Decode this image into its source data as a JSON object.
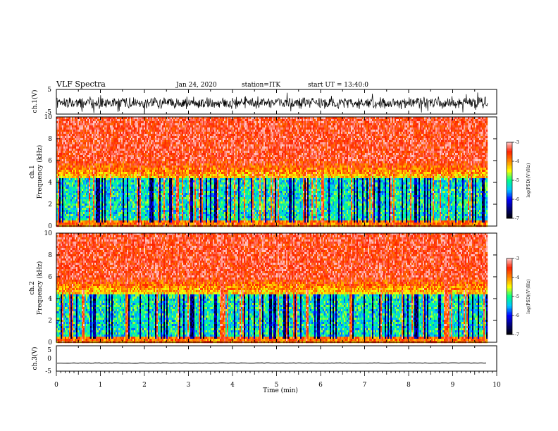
{
  "header": {
    "title": "VLF Spectra",
    "date": "Jan 24, 2020",
    "station": "station=ITK",
    "start": "start UT = 13:40:0"
  },
  "colors": {
    "trace": "#000000",
    "colormap": [
      "#000000",
      "#00007a",
      "#0000ff",
      "#00c8ff",
      "#00ff88",
      "#ffff00",
      "#ff8800",
      "#ff2200",
      "#ffcccc"
    ]
  },
  "chart_data": [
    {
      "type": "line",
      "panel": "ch1-waveform",
      "ylabel": "ch.1(V)",
      "ylim": [
        -5,
        5
      ],
      "y_ticks": [
        "5",
        "-5"
      ],
      "xlim": [
        0,
        10
      ],
      "description_values": {
        "typical_range": [
          -3,
          3
        ],
        "dense_noise": true
      }
    },
    {
      "type": "heatmap",
      "panel": "ch1-spectrogram",
      "ylabel_line1": "ch.1",
      "ylabel_line2": "Frequency (kHz)",
      "ylim": [
        0,
        10
      ],
      "y_ticks": [
        "0",
        "2",
        "4",
        "6",
        "8",
        "10"
      ],
      "xlim": [
        0,
        9.8
      ],
      "colorbar": {
        "label": "log(PSD)(V²/Hz)",
        "range": [
          -7,
          -3
        ],
        "ticks": [
          "-3",
          "-4",
          "-5",
          "-6",
          "-7"
        ]
      }
    },
    {
      "type": "heatmap",
      "panel": "ch2-spectrogram",
      "ylabel_line1": "ch.2",
      "ylabel_line2": "Frequency (kHz)",
      "ylim": [
        0,
        10
      ],
      "y_ticks": [
        "0",
        "2",
        "4",
        "6",
        "8",
        "10"
      ],
      "xlim": [
        0,
        9.8
      ],
      "colorbar": {
        "label": "log(PSD)(V²/Hz)",
        "range": [
          -7,
          -3
        ],
        "ticks": [
          "-3",
          "-4",
          "-5",
          "-6",
          "-7"
        ]
      }
    },
    {
      "type": "line",
      "panel": "ch3-waveform",
      "ylabel": "ch.3(V)",
      "ylim": [
        -5,
        5
      ],
      "y_ticks": [
        "5",
        "0",
        "-5"
      ],
      "xlim": [
        0,
        10
      ],
      "level": -1.8,
      "xlabel": "Time (min)",
      "x_ticks": [
        "0",
        "1",
        "2",
        "3",
        "4",
        "5",
        "6",
        "7",
        "8",
        "9",
        "10"
      ]
    }
  ]
}
